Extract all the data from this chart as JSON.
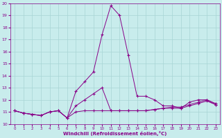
{
  "xlabel": "Windchill (Refroidissement éolien,°C)",
  "xlim": [
    -0.5,
    23.5
  ],
  "ylim": [
    10,
    20
  ],
  "yticks": [
    10,
    11,
    12,
    13,
    14,
    15,
    16,
    17,
    18,
    19,
    20
  ],
  "xticks": [
    0,
    1,
    2,
    3,
    4,
    5,
    6,
    7,
    8,
    9,
    10,
    11,
    12,
    13,
    14,
    15,
    16,
    17,
    18,
    19,
    20,
    21,
    22,
    23
  ],
  "background_color": "#c8ecec",
  "grid_color": "#a8d4d4",
  "line_color": "#880088",
  "series": [
    [
      11.1,
      10.9,
      10.8,
      10.7,
      11.0,
      11.1,
      10.5,
      11.0,
      11.1,
      11.1,
      11.1,
      11.1,
      11.1,
      11.1,
      11.1,
      11.1,
      11.2,
      11.3,
      11.3,
      11.3,
      11.5,
      11.7,
      11.9,
      11.6
    ],
    [
      11.1,
      10.9,
      10.8,
      10.7,
      11.0,
      11.1,
      10.5,
      12.7,
      13.5,
      14.3,
      17.4,
      19.8,
      19.0,
      15.7,
      12.3,
      12.3,
      12.0,
      11.5,
      11.5,
      11.3,
      11.8,
      12.0,
      12.0,
      11.6
    ],
    [
      11.1,
      10.9,
      10.8,
      10.7,
      11.0,
      11.1,
      10.5,
      11.5,
      12.0,
      12.5,
      13.0,
      11.1,
      11.1,
      11.1,
      11.1,
      11.1,
      11.2,
      11.3,
      11.4,
      11.4,
      11.6,
      11.8,
      12.0,
      11.7
    ]
  ]
}
